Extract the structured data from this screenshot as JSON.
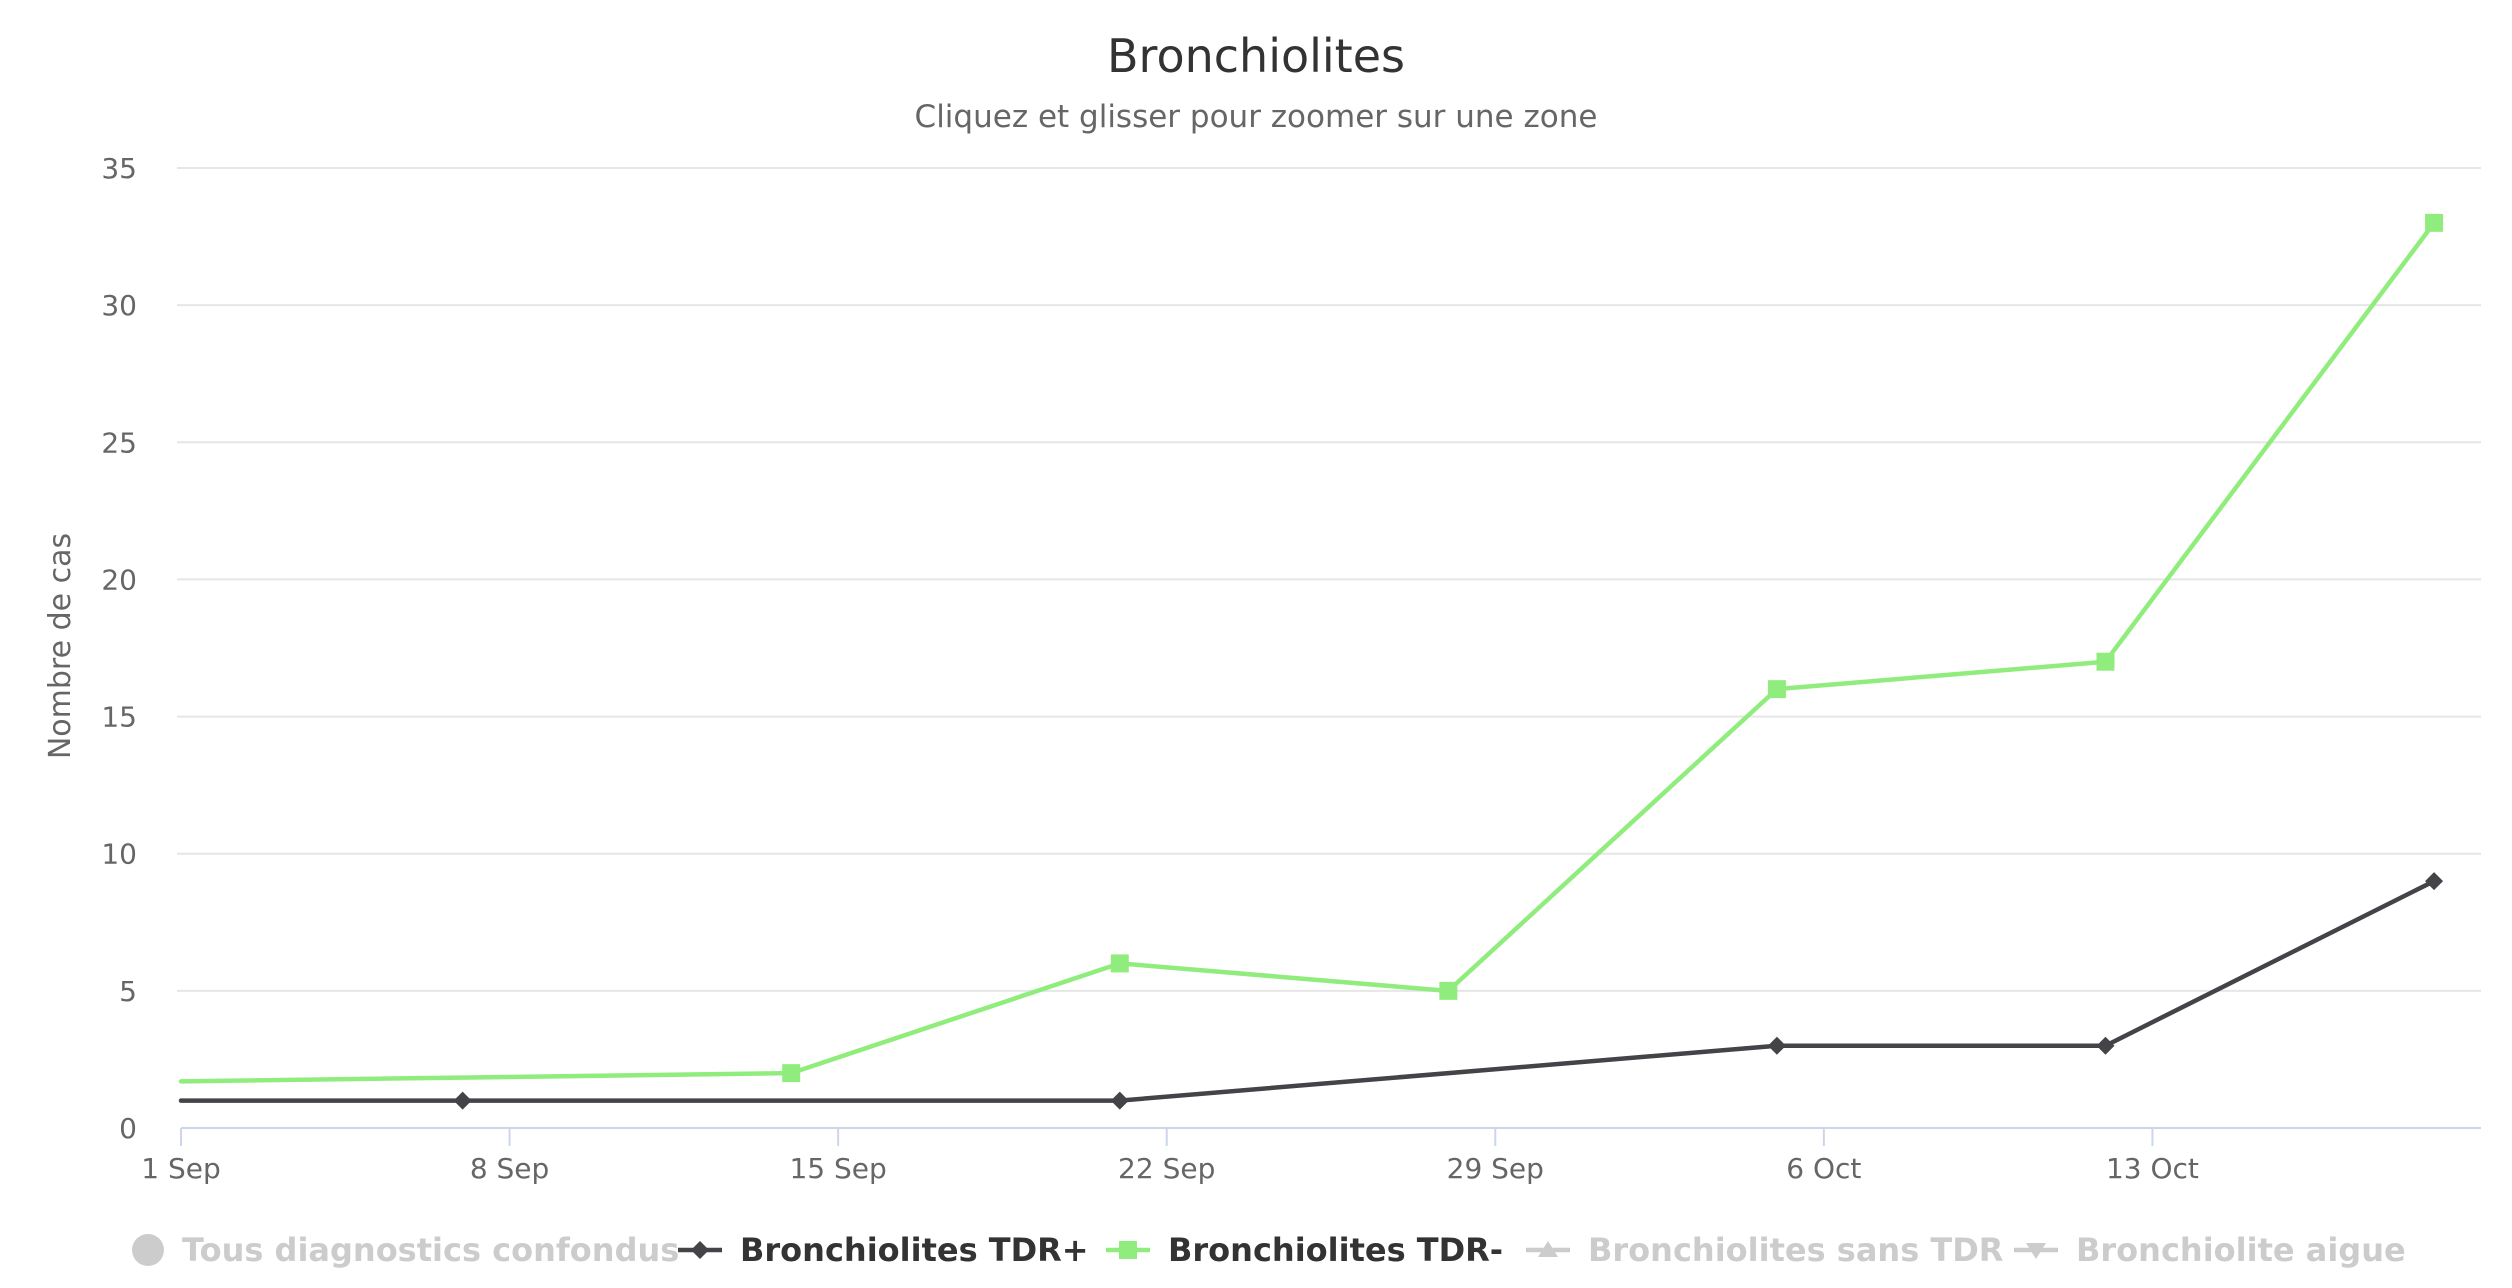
{
  "chart_data": {
    "type": "line",
    "title": "Bronchiolites",
    "subtitle": "Cliquez et glisser pour zoomer sur une zone",
    "ylabel": "Nombre de cas",
    "xlabel": "",
    "x_axis_type": "date",
    "xlim": [
      "2024-09-01",
      "2024-10-20"
    ],
    "x_ticks": [
      {
        "date": "2024-09-01",
        "label": "1 Sep"
      },
      {
        "date": "2024-09-08",
        "label": "8 Sep"
      },
      {
        "date": "2024-09-15",
        "label": "15 Sep"
      },
      {
        "date": "2024-09-22",
        "label": "22 Sep"
      },
      {
        "date": "2024-09-29",
        "label": "29 Sep"
      },
      {
        "date": "2024-10-06",
        "label": "6 Oct"
      },
      {
        "date": "2024-10-13",
        "label": "13 Oct"
      }
    ],
    "ylim": [
      0,
      35
    ],
    "y_ticks": [
      0,
      5,
      10,
      15,
      20,
      25,
      30,
      35
    ],
    "grid": true,
    "legend_position": "bottom",
    "series": [
      {
        "name": "Tous diagnostics confondus",
        "visible": false,
        "marker": "circle",
        "color": "#cccccc",
        "points": []
      },
      {
        "name": "Bronchiolites TDR+",
        "visible": true,
        "marker": "diamond",
        "color": "#434348",
        "points": [
          {
            "x": "2024-09-01",
            "y": 1
          },
          {
            "x": "2024-09-07",
            "y": 1
          },
          {
            "x": "2024-09-21",
            "y": 1
          },
          {
            "x": "2024-10-05",
            "y": 3
          },
          {
            "x": "2024-10-12",
            "y": 3
          },
          {
            "x": "2024-10-19",
            "y": 9
          }
        ]
      },
      {
        "name": "Bronchiolites TDR-",
        "visible": true,
        "marker": "square",
        "color": "#90ed7d",
        "points": [
          {
            "x": "2024-09-01",
            "y": 1.7
          },
          {
            "x": "2024-09-14",
            "y": 2
          },
          {
            "x": "2024-09-21",
            "y": 6
          },
          {
            "x": "2024-09-28",
            "y": 5
          },
          {
            "x": "2024-10-05",
            "y": 16
          },
          {
            "x": "2024-10-12",
            "y": 17
          },
          {
            "x": "2024-10-19",
            "y": 33
          }
        ]
      },
      {
        "name": "Bronchiolites sans TDR",
        "visible": false,
        "marker": "triangle",
        "color": "#cccccc",
        "points": []
      },
      {
        "name": "Bronchiolite aigue",
        "visible": false,
        "marker": "triangle-down",
        "color": "#cccccc",
        "points": []
      }
    ]
  },
  "colors": {
    "gridline": "#e6e6e6",
    "axis_line": "#ccd6eb",
    "hidden_series": "#cccccc",
    "legend_text_active": "#333333",
    "legend_text_hidden": "#cccccc"
  }
}
